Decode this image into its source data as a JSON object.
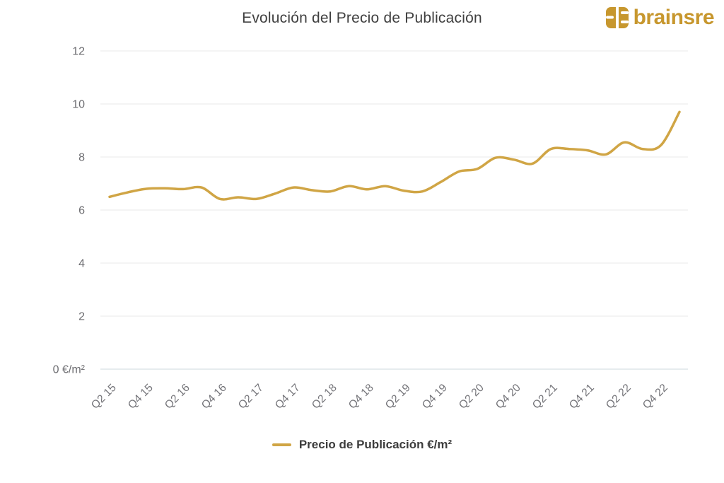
{
  "header": {
    "title": "Evolución del Precio de Publicación",
    "logo_text": "brainsre",
    "logo_color": "#C7972E"
  },
  "legend": {
    "label": "Precio de Publicación €/m²"
  },
  "chart_data": {
    "type": "line",
    "title": "Evolución del Precio de Publicación",
    "x": [
      "Q2 15",
      "Q3 15",
      "Q4 15",
      "Q1 16",
      "Q2 16",
      "Q3 16",
      "Q4 16",
      "Q1 17",
      "Q2 17",
      "Q3 17",
      "Q4 17",
      "Q1 18",
      "Q2 18",
      "Q3 18",
      "Q4 18",
      "Q1 19",
      "Q2 19",
      "Q3 19",
      "Q4 19",
      "Q1 20",
      "Q2 20",
      "Q3 20",
      "Q4 20",
      "Q1 21",
      "Q2 21",
      "Q3 21",
      "Q4 21",
      "Q1 22",
      "Q2 22",
      "Q3 22",
      "Q4 22",
      "Q1 23"
    ],
    "x_tick_labels": [
      "Q2 15",
      "Q4 15",
      "Q2 16",
      "Q4 16",
      "Q2 17",
      "Q4 17",
      "Q2 18",
      "Q4 18",
      "Q2 19",
      "Q4 19",
      "Q2 20",
      "Q4 20",
      "Q2 21",
      "Q4 21",
      "Q2 22",
      "Q4 22"
    ],
    "series": [
      {
        "name": "Precio de Publicación €/m²",
        "color": "#D0A545",
        "values": [
          6.5,
          6.67,
          6.8,
          6.82,
          6.79,
          6.85,
          6.42,
          6.48,
          6.42,
          6.62,
          6.85,
          6.75,
          6.7,
          6.9,
          6.78,
          6.9,
          6.73,
          6.7,
          7.05,
          7.45,
          7.55,
          7.97,
          7.9,
          7.75,
          8.3,
          8.3,
          8.25,
          8.1,
          8.55,
          8.3,
          8.45,
          9.7
        ]
      }
    ],
    "xlabel": "",
    "ylabel": "",
    "ylim": [
      0,
      12
    ],
    "yticks": [
      0,
      2,
      4,
      6,
      8,
      10,
      12
    ],
    "ytick_labels": [
      "0 €/m²",
      "2",
      "4",
      "6",
      "8",
      "10",
      "12"
    ],
    "grid": true,
    "grid_color": "#e9e9e9",
    "zero_axis_color": "#ccd8dd",
    "ytick_color": "#6c6c70",
    "xtick_color": "#737378",
    "legend_position": "bottom"
  }
}
